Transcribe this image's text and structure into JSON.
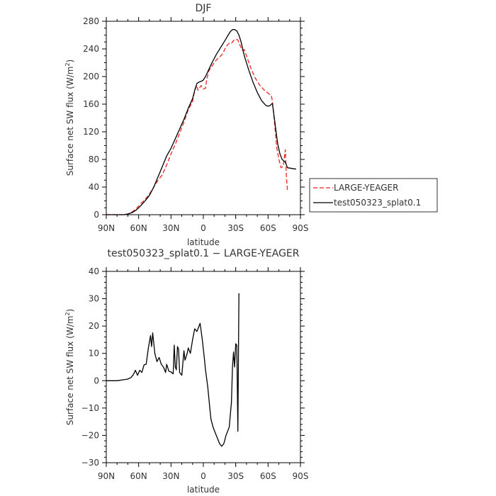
{
  "chart_data": [
    {
      "type": "line",
      "title": "DJF",
      "xlabel": "latitude",
      "ylabel": "Surface net SW flux (W/m²)",
      "ylabel_main": "Surface net SW flux (W/m",
      "ylabel_sup": "2",
      "ylabel_end": ")",
      "xlim": [
        90,
        -90
      ],
      "ylim": [
        0,
        280
      ],
      "xticks": [
        {
          "value": 90,
          "label": "90N"
        },
        {
          "value": 60,
          "label": "60N"
        },
        {
          "value": 30,
          "label": "30N"
        },
        {
          "value": 0,
          "label": "0"
        },
        {
          "value": -30,
          "label": "30S"
        },
        {
          "value": -60,
          "label": "60S"
        },
        {
          "value": -90,
          "label": "90S"
        }
      ],
      "yticks": [
        {
          "value": 0,
          "label": "0"
        },
        {
          "value": 40,
          "label": "40"
        },
        {
          "value": 80,
          "label": "80"
        },
        {
          "value": 120,
          "label": "120"
        },
        {
          "value": 160,
          "label": "160"
        },
        {
          "value": 200,
          "label": "200"
        },
        {
          "value": 240,
          "label": "240"
        },
        {
          "value": 280,
          "label": "280"
        }
      ],
      "legend_position": "right",
      "series": [
        {
          "name": "LARGE-YEAGER",
          "color": "#ee2222",
          "dash": "dashed",
          "points": [
            [
              90,
              0
            ],
            [
              80,
              0
            ],
            [
              74,
              0
            ],
            [
              70,
              1
            ],
            [
              66,
              4
            ],
            [
              62,
              9
            ],
            [
              58,
              16
            ],
            [
              54,
              22
            ],
            [
              50,
              30
            ],
            [
              46,
              40
            ],
            [
              42,
              50
            ],
            [
              38,
              58
            ],
            [
              34,
              72
            ],
            [
              30,
              88
            ],
            [
              26,
              102
            ],
            [
              22,
              118
            ],
            [
              18,
              134
            ],
            [
              14,
              152
            ],
            [
              10,
              164
            ],
            [
              8,
              180
            ],
            [
              6,
              187
            ],
            [
              5,
              180
            ],
            [
              4,
              183
            ],
            [
              2,
              187
            ],
            [
              0,
              182
            ],
            [
              -2,
              183
            ],
            [
              -3,
              195
            ],
            [
              -5,
              208
            ],
            [
              -8,
              215
            ],
            [
              -10,
              220
            ],
            [
              -12,
              224
            ],
            [
              -15,
              228
            ],
            [
              -18,
              233
            ],
            [
              -20,
              240
            ],
            [
              -22,
              245
            ],
            [
              -24,
              248
            ],
            [
              -26,
              248
            ],
            [
              -28,
              252
            ],
            [
              -30,
              254
            ],
            [
              -32,
              253
            ],
            [
              -34,
              245
            ],
            [
              -36,
              238
            ],
            [
              -38,
              239
            ],
            [
              -40,
              230
            ],
            [
              -44,
              212
            ],
            [
              -48,
              198
            ],
            [
              -52,
              188
            ],
            [
              -56,
              181
            ],
            [
              -60,
              176
            ],
            [
              -63,
              172
            ],
            [
              -64,
              165
            ],
            [
              -66,
              132
            ],
            [
              -68,
              98
            ],
            [
              -70,
              80
            ],
            [
              -72,
              68
            ],
            [
              -74,
              70
            ],
            [
              -76,
              94
            ],
            [
              -77,
              55
            ],
            [
              -78,
              35
            ]
          ]
        },
        {
          "name": "test050323_splat0.1",
          "color": "#000000",
          "dash": "solid",
          "points": [
            [
              90,
              0
            ],
            [
              80,
              0
            ],
            [
              74,
              0
            ],
            [
              70,
              1
            ],
            [
              66,
              3
            ],
            [
              62,
              7
            ],
            [
              58,
              13
            ],
            [
              54,
              20
            ],
            [
              50,
              28
            ],
            [
              46,
              40
            ],
            [
              42,
              55
            ],
            [
              38,
              70
            ],
            [
              34,
              85
            ],
            [
              30,
              96
            ],
            [
              26,
              110
            ],
            [
              22,
              124
            ],
            [
              18,
              138
            ],
            [
              14,
              154
            ],
            [
              10,
              168
            ],
            [
              8,
              180
            ],
            [
              6,
              190
            ],
            [
              4,
              192
            ],
            [
              2,
              193
            ],
            [
              0,
              195
            ],
            [
              -2,
              200
            ],
            [
              -5,
              210
            ],
            [
              -8,
              220
            ],
            [
              -12,
              232
            ],
            [
              -16,
              242
            ],
            [
              -20,
              252
            ],
            [
              -23,
              260
            ],
            [
              -25,
              265
            ],
            [
              -27,
              268
            ],
            [
              -29,
              268
            ],
            [
              -31,
              266
            ],
            [
              -33,
              260
            ],
            [
              -35,
              250
            ],
            [
              -38,
              230
            ],
            [
              -42,
              210
            ],
            [
              -46,
              192
            ],
            [
              -50,
              177
            ],
            [
              -54,
              165
            ],
            [
              -58,
              158
            ],
            [
              -60,
              157
            ],
            [
              -62,
              158
            ],
            [
              -63,
              160
            ],
            [
              -64,
              161
            ],
            [
              -65,
              150
            ],
            [
              -67,
              125
            ],
            [
              -69,
              102
            ],
            [
              -71,
              88
            ],
            [
              -73,
              80
            ],
            [
              -76,
              76
            ],
            [
              -78,
              68
            ],
            [
              -82,
              67
            ],
            [
              -86,
              66
            ]
          ]
        }
      ]
    },
    {
      "type": "line",
      "title": "test050323_splat0.1 − LARGE-YEAGER",
      "xlabel": "latitude",
      "ylabel": "Surface net SW flux (W/m²)",
      "ylabel_main": "Surface net SW flux (W/m",
      "ylabel_sup": "2",
      "ylabel_end": ")",
      "xlim": [
        90,
        -90
      ],
      "ylim": [
        -30,
        40
      ],
      "xticks": [
        {
          "value": 90,
          "label": "90N"
        },
        {
          "value": 60,
          "label": "60N"
        },
        {
          "value": 30,
          "label": "30N"
        },
        {
          "value": 0,
          "label": "0"
        },
        {
          "value": -30,
          "label": "30S"
        },
        {
          "value": -60,
          "label": "60S"
        },
        {
          "value": -90,
          "label": "90S"
        }
      ],
      "yticks": [
        {
          "value": -30,
          "label": "−30"
        },
        {
          "value": -20,
          "label": "−20"
        },
        {
          "value": -10,
          "label": "−10"
        },
        {
          "value": 0,
          "label": "0"
        },
        {
          "value": 10,
          "label": "10"
        },
        {
          "value": 20,
          "label": "20"
        },
        {
          "value": 30,
          "label": "30"
        },
        {
          "value": 40,
          "label": "40"
        }
      ],
      "series": [
        {
          "name": "",
          "color": "#000000",
          "dash": "solid",
          "points": [
            [
              90,
              0
            ],
            [
              80,
              0
            ],
            [
              75,
              0.3
            ],
            [
              70,
              0.6
            ],
            [
              67,
              1.2
            ],
            [
              65,
              2.2
            ],
            [
              63,
              3.8
            ],
            [
              61,
              2
            ],
            [
              59,
              3.8
            ],
            [
              57,
              3
            ],
            [
              55,
              5.8
            ],
            [
              53,
              6
            ],
            [
              51,
              12
            ],
            [
              49,
              16.5
            ],
            [
              48,
              12.5
            ],
            [
              47,
              17.5
            ],
            [
              45,
              10
            ],
            [
              43,
              7
            ],
            [
              41,
              8.5
            ],
            [
              39,
              6
            ],
            [
              37,
              5
            ],
            [
              35,
              3
            ],
            [
              34,
              6
            ],
            [
              32,
              3.5
            ],
            [
              30,
              3.2
            ],
            [
              28,
              2.5
            ],
            [
              27,
              13
            ],
            [
              26,
              5
            ],
            [
              25,
              4
            ],
            [
              24,
              12.5
            ],
            [
              23,
              11.5
            ],
            [
              22,
              3
            ],
            [
              20,
              2
            ],
            [
              18,
              11
            ],
            [
              17,
              7.5
            ],
            [
              15,
              10
            ],
            [
              14,
              12
            ],
            [
              12,
              10
            ],
            [
              10,
              15
            ],
            [
              8,
              19
            ],
            [
              6,
              18
            ],
            [
              4,
              20
            ],
            [
              3,
              21
            ],
            [
              1,
              15
            ],
            [
              -1,
              8
            ],
            [
              -2,
              4
            ],
            [
              -4,
              -2
            ],
            [
              -6,
              -10
            ],
            [
              -7,
              -14
            ],
            [
              -9,
              -17
            ],
            [
              -11,
              -19
            ],
            [
              -13,
              -21
            ],
            [
              -15,
              -23
            ],
            [
              -17,
              -24
            ],
            [
              -19,
              -23
            ],
            [
              -21,
              -20
            ],
            [
              -23,
              -18
            ],
            [
              -24,
              -17
            ],
            [
              -26,
              -8
            ],
            [
              -27,
              5
            ],
            [
              -28,
              10.5
            ],
            [
              -29,
              5
            ],
            [
              -30,
              13.5
            ],
            [
              -31,
              13
            ],
            [
              -32,
              -18.5
            ],
            [
              -33,
              32
            ]
          ]
        }
      ]
    }
  ]
}
